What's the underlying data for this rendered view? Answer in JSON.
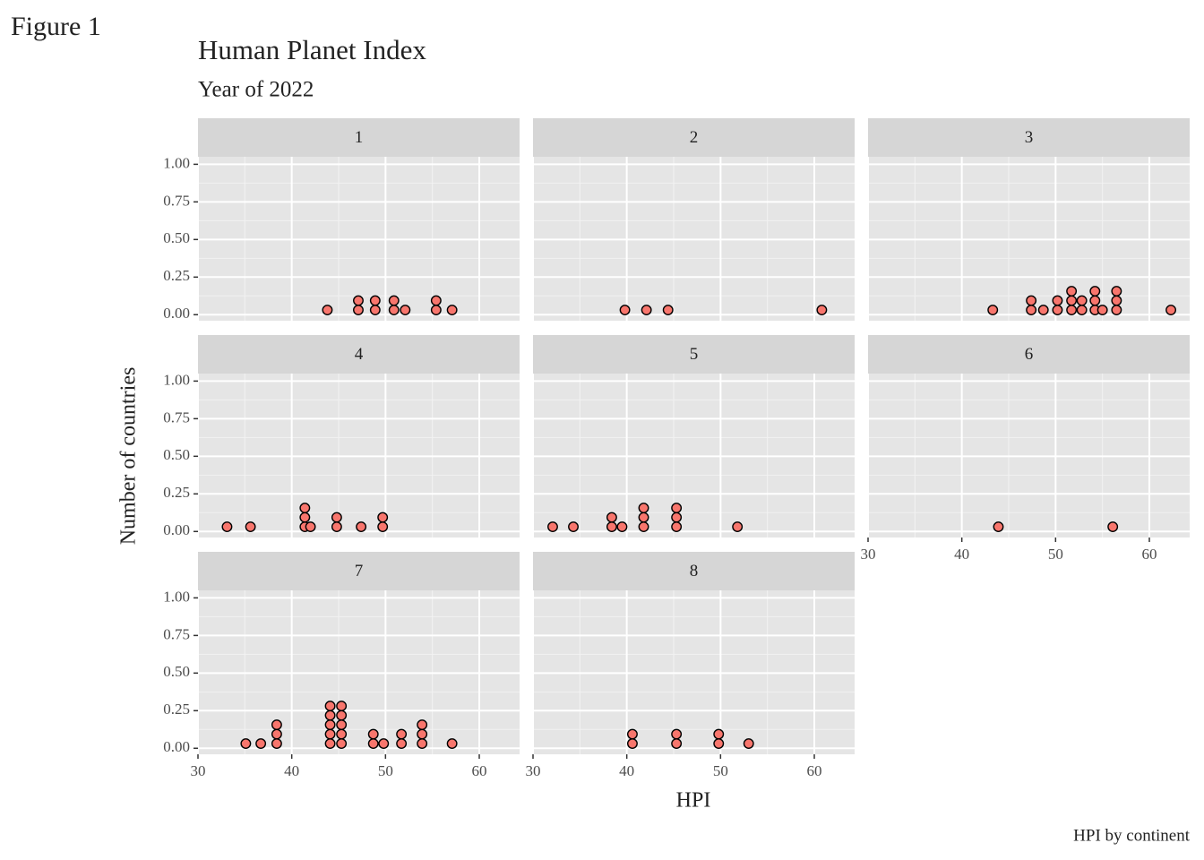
{
  "figure_label": "Figure 1",
  "chart_data": {
    "type": "dotplot",
    "title": "Human Planet Index",
    "subtitle": "Year of 2022",
    "x_label": "HPI",
    "y_label": "Number of countries",
    "caption": "HPI by continent",
    "xlim": [
      30,
      64.3
    ],
    "ylim": [
      -0.04,
      1.05
    ],
    "xticks": [
      30,
      40,
      50,
      60
    ],
    "yticks": [
      {
        "value": 0,
        "label": "0.00"
      },
      {
        "value": 0.25,
        "label": "0.25"
      },
      {
        "value": 0.5,
        "label": "0.50"
      },
      {
        "value": 0.75,
        "label": "0.75"
      },
      {
        "value": 1,
        "label": "1.00"
      }
    ],
    "grid": true,
    "color": "#f8766d",
    "facets": [
      {
        "name": "1",
        "x": [
          43.8,
          47.1,
          48.9,
          50.9,
          52.1,
          55.4,
          57.1
        ],
        "counts": [
          1,
          2,
          2,
          2,
          1,
          2,
          1
        ]
      },
      {
        "name": "2",
        "x": [
          39.8,
          42.1,
          44.4,
          60.8
        ],
        "counts": [
          1,
          1,
          1,
          1
        ]
      },
      {
        "name": "3",
        "x": [
          43.3,
          47.4,
          48.7,
          50.2,
          51.7,
          52.8,
          54.2,
          55.0,
          56.5,
          62.3
        ],
        "counts": [
          1,
          2,
          1,
          2,
          3,
          2,
          3,
          1,
          3,
          1
        ]
      },
      {
        "name": "4",
        "x": [
          33.1,
          35.6,
          41.4,
          42.0,
          44.8,
          47.4,
          49.7
        ],
        "counts": [
          1,
          1,
          3,
          1,
          2,
          1,
          2
        ]
      },
      {
        "name": "5",
        "x": [
          32.1,
          34.3,
          38.4,
          39.5,
          41.8,
          45.3,
          51.8
        ],
        "counts": [
          1,
          1,
          2,
          1,
          3,
          3,
          1
        ]
      },
      {
        "name": "6",
        "x": [
          43.9,
          56.1
        ],
        "counts": [
          1,
          1
        ]
      },
      {
        "name": "7",
        "x": [
          35.1,
          36.7,
          38.4,
          44.1,
          45.3,
          48.7,
          49.8,
          51.7,
          53.9,
          57.1
        ],
        "counts": [
          1,
          1,
          3,
          5,
          5,
          2,
          1,
          2,
          3,
          1
        ]
      },
      {
        "name": "8",
        "x": [
          40.6,
          45.3,
          49.8,
          53.0
        ],
        "counts": [
          2,
          2,
          2,
          1
        ]
      }
    ]
  }
}
